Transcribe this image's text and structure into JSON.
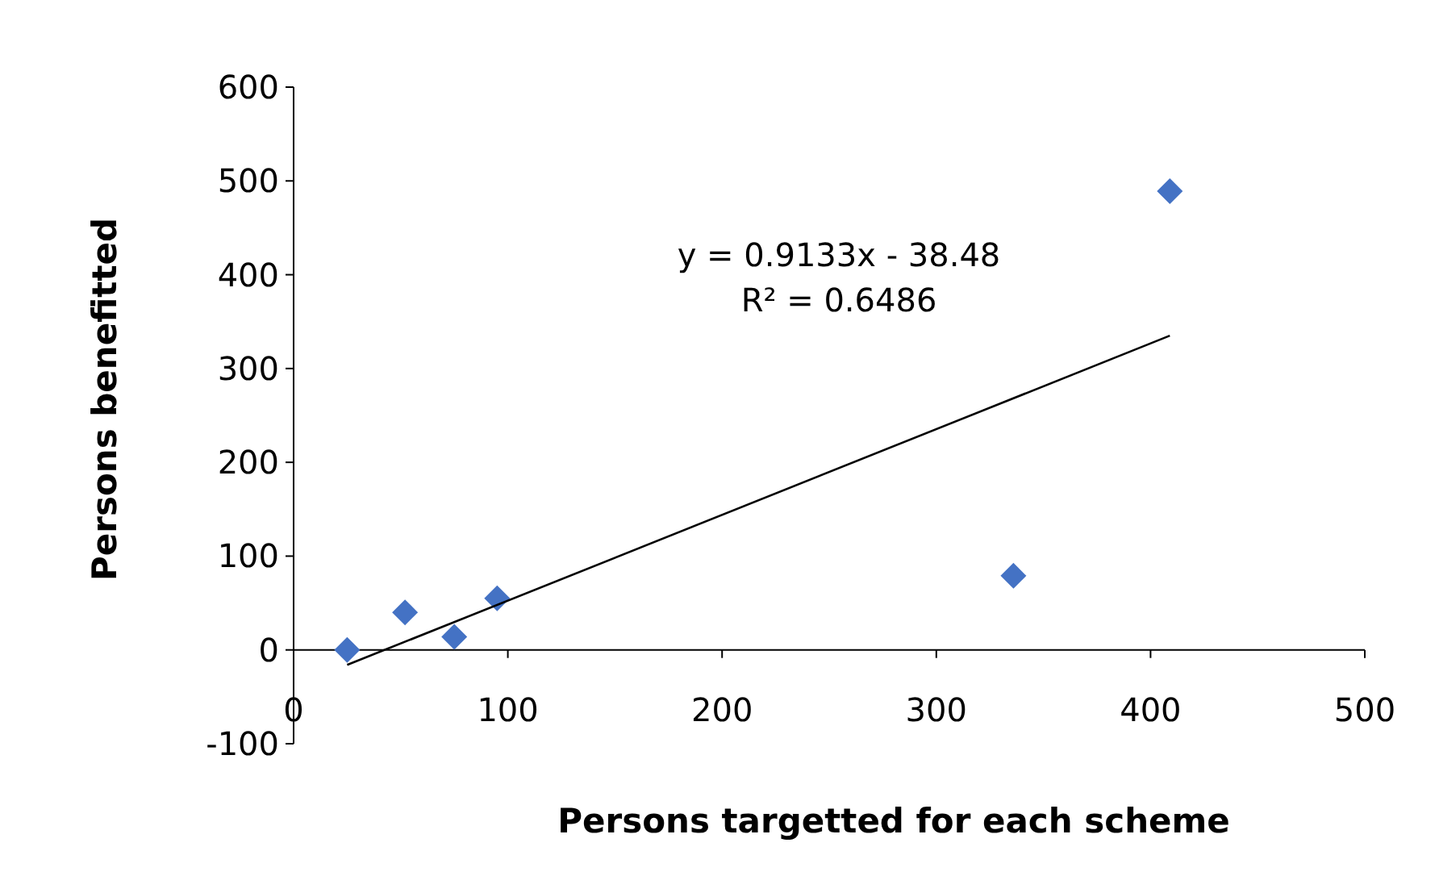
{
  "chart_data": {
    "type": "scatter",
    "xlabel": "Persons targetted  for each scheme",
    "ylabel": "Persons benefitted",
    "xlim": [
      0,
      500
    ],
    "xticks": [
      0,
      100,
      200,
      300,
      400,
      500
    ],
    "ylim": [
      -100,
      600
    ],
    "yticks": [
      -100,
      0,
      100,
      200,
      300,
      400,
      500,
      600
    ],
    "grid": false,
    "series": [
      {
        "color": "#4472c4",
        "marker": "diamond",
        "x": [
          25,
          52,
          75,
          95,
          336,
          409
        ],
        "values": [
          0,
          40,
          14,
          55,
          79,
          489
        ]
      },
      {
        "type": "line",
        "color": "#000000",
        "marker": "none",
        "line_style": "solid",
        "x": [
          25,
          409
        ],
        "values": [
          -16,
          335
        ]
      }
    ],
    "annotations": [
      "y = 0.9133x - 38.48",
      "R² = 0.6486"
    ]
  }
}
